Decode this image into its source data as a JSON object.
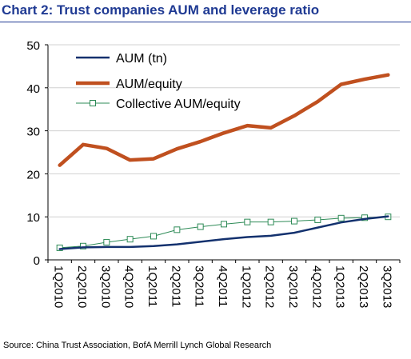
{
  "title": "Chart 2: Trust companies AUM and leverage ratio",
  "source": "Source: China Trust Association, BofA Merrill Lynch Global Research",
  "colors": {
    "title": "#1f3a93",
    "aum": "#13316e",
    "aum_equity": "#c0501f",
    "collective": "#2e8b57",
    "grid": "#d0d0d0"
  },
  "chart_data": {
    "type": "line",
    "title": "",
    "xlabel": "",
    "ylabel": "",
    "ylim": [
      0,
      50
    ],
    "yticks": [
      0,
      10,
      20,
      30,
      40,
      50
    ],
    "grid": true,
    "legend_position": "top-left",
    "categories": [
      "1Q2010",
      "2Q2010",
      "3Q2010",
      "4Q2010",
      "1Q2011",
      "2Q2011",
      "3Q2011",
      "4Q2011",
      "1Q2012",
      "2Q2012",
      "3Q2012",
      "4Q2012",
      "1Q2013",
      "2Q2013",
      "3Q2013"
    ],
    "series": [
      {
        "name": "AUM (tn)",
        "values": [
          2.5,
          2.9,
          3.0,
          3.0,
          3.2,
          3.6,
          4.2,
          4.8,
          5.3,
          5.6,
          6.3,
          7.5,
          8.7,
          9.5,
          10.1
        ]
      },
      {
        "name": "AUM/equity",
        "values": [
          22.0,
          26.8,
          25.9,
          23.2,
          23.5,
          25.8,
          27.5,
          29.5,
          31.2,
          30.7,
          33.5,
          36.8,
          40.8,
          42.0,
          43.0
        ]
      },
      {
        "name": "Collective AUM/equity",
        "values": [
          2.8,
          3.2,
          4.1,
          4.8,
          5.5,
          7.0,
          7.7,
          8.3,
          8.8,
          8.8,
          9.0,
          9.3,
          9.7,
          9.8,
          10.0
        ]
      }
    ]
  }
}
